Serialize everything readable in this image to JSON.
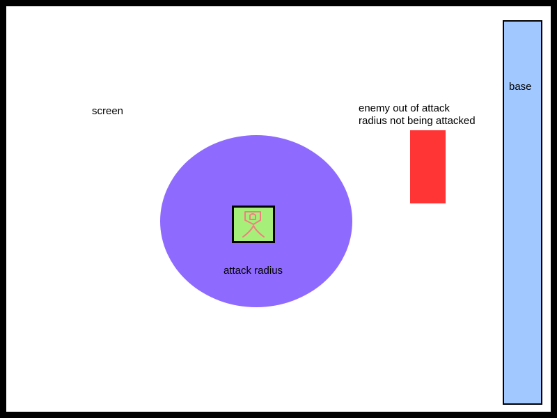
{
  "labels": {
    "screen": "screen",
    "enemy_line1": "enemy out of attack",
    "enemy_line2": "radius not being attacked",
    "attack_radius": "attack radius",
    "base": "base"
  },
  "colors": {
    "frame": "#000000",
    "screen": "#ffffff",
    "attack_radius": "#8f6aff",
    "tower": "#a6f07a",
    "tower_glyph": "#f08080",
    "enemy": "#ff3434",
    "base": "#a2c9ff"
  },
  "icons": {
    "tower": "tower-figure-icon"
  }
}
